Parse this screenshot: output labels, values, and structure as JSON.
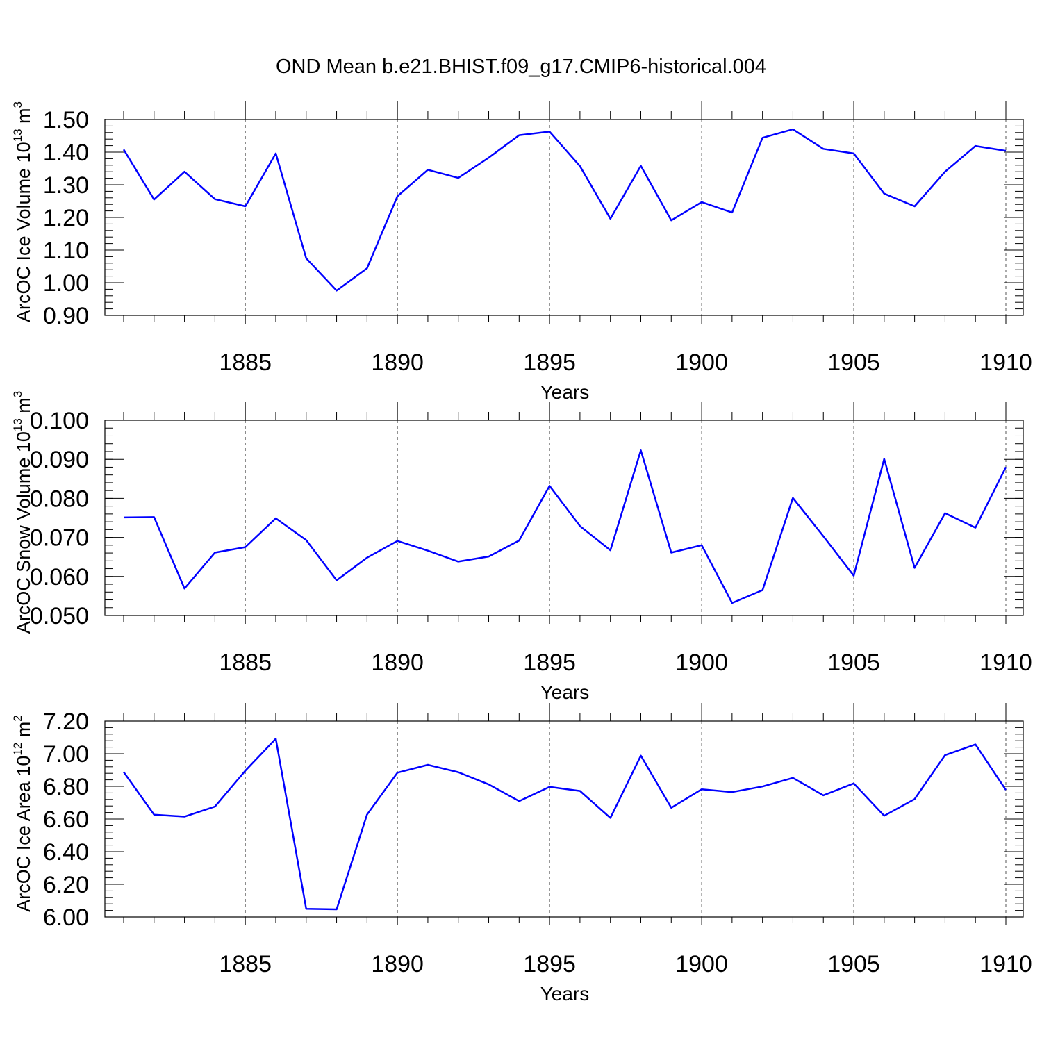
{
  "title": "OND Mean b.e21.BHIST.f09_g17.CMIP6-historical.004",
  "chart_data": [
    {
      "type": "line",
      "xlabel": "Years",
      "ylabel": "ArcOC Ice Volume 10",
      "ylabel_exp": "13",
      "ylabel_unit": " m",
      "ylabel_unit_exp": "3",
      "xlim": [
        1881,
        1910
      ],
      "ylim": [
        0.9,
        1.5
      ],
      "xticks": [
        1885,
        1890,
        1895,
        1900,
        1905,
        1910
      ],
      "xtick_labels": [
        "1885",
        "1890",
        "1895",
        "1900",
        "1905",
        "1910"
      ],
      "yticks": [
        0.9,
        1.0,
        1.1,
        1.2,
        1.3,
        1.4,
        1.5
      ],
      "ytick_labels": [
        "0.90",
        "1.00",
        "1.10",
        "1.20",
        "1.30",
        "1.40",
        "1.50"
      ],
      "y_minor_step": 0.02,
      "grid": "vertical dashed at major x ticks",
      "color": "#0000ff",
      "x": [
        1881,
        1882,
        1883,
        1884,
        1885,
        1886,
        1887,
        1888,
        1889,
        1890,
        1891,
        1892,
        1893,
        1894,
        1895,
        1896,
        1897,
        1898,
        1899,
        1900,
        1901,
        1902,
        1903,
        1904,
        1905,
        1906,
        1907,
        1908,
        1909,
        1910
      ],
      "values": [
        1.408,
        1.255,
        1.34,
        1.256,
        1.234,
        1.396,
        1.075,
        0.976,
        1.044,
        1.265,
        1.346,
        1.321,
        1.383,
        1.452,
        1.463,
        1.357,
        1.196,
        1.358,
        1.191,
        1.247,
        1.215,
        1.444,
        1.47,
        1.41,
        1.396,
        1.273,
        1.234,
        1.34,
        1.419,
        1.404
      ]
    },
    {
      "type": "line",
      "xlabel": "Years",
      "ylabel": "ArcOC Snow Volume 10",
      "ylabel_exp": "13",
      "ylabel_unit": " m",
      "ylabel_unit_exp": "3",
      "xlim": [
        1881,
        1910
      ],
      "ylim": [
        0.05,
        0.1
      ],
      "xticks": [
        1885,
        1890,
        1895,
        1900,
        1905,
        1910
      ],
      "xtick_labels": [
        "1885",
        "1890",
        "1895",
        "1900",
        "1905",
        "1910"
      ],
      "yticks": [
        0.05,
        0.06,
        0.07,
        0.08,
        0.09,
        0.1
      ],
      "ytick_labels": [
        "0.050",
        "0.060",
        "0.070",
        "0.080",
        "0.090",
        "0.100"
      ],
      "y_minor_step": 0.002,
      "grid": "vertical dashed at major x ticks",
      "color": "#0000ff",
      "x": [
        1881,
        1882,
        1883,
        1884,
        1885,
        1886,
        1887,
        1888,
        1889,
        1890,
        1891,
        1892,
        1893,
        1894,
        1895,
        1896,
        1897,
        1898,
        1899,
        1900,
        1901,
        1902,
        1903,
        1904,
        1905,
        1906,
        1907,
        1908,
        1909,
        1910
      ],
      "values": [
        0.0751,
        0.0752,
        0.0569,
        0.0661,
        0.0675,
        0.0749,
        0.0693,
        0.059,
        0.0648,
        0.0691,
        0.0666,
        0.0638,
        0.0651,
        0.0692,
        0.0832,
        0.0729,
        0.0667,
        0.0923,
        0.0661,
        0.068,
        0.0532,
        0.0565,
        0.0801,
        0.0703,
        0.0602,
        0.0901,
        0.0622,
        0.0762,
        0.0725,
        0.088
      ]
    },
    {
      "type": "line",
      "xlabel": "Years",
      "ylabel": "ArcOC Ice Area 10",
      "ylabel_exp": "12",
      "ylabel_unit": " m",
      "ylabel_unit_exp": "2",
      "xlim": [
        1881,
        1910
      ],
      "ylim": [
        6.0,
        7.2
      ],
      "xticks": [
        1885,
        1890,
        1895,
        1900,
        1905,
        1910
      ],
      "xtick_labels": [
        "1885",
        "1890",
        "1895",
        "1900",
        "1905",
        "1910"
      ],
      "yticks": [
        6.0,
        6.2,
        6.4,
        6.6,
        6.8,
        7.0,
        7.2
      ],
      "ytick_labels": [
        "6.00",
        "6.20",
        "6.40",
        "6.60",
        "6.80",
        "7.00",
        "7.20"
      ],
      "y_minor_step": 0.04,
      "grid": "vertical dashed at major x ticks",
      "color": "#0000ff",
      "x": [
        1881,
        1882,
        1883,
        1884,
        1885,
        1886,
        1887,
        1888,
        1889,
        1890,
        1891,
        1892,
        1893,
        1894,
        1895,
        1896,
        1897,
        1898,
        1899,
        1900,
        1901,
        1902,
        1903,
        1904,
        1905,
        1906,
        1907,
        1908,
        1909,
        1910
      ],
      "values": [
        6.888,
        6.627,
        6.615,
        6.676,
        6.896,
        7.092,
        6.05,
        6.047,
        6.627,
        6.884,
        6.932,
        6.887,
        6.812,
        6.71,
        6.797,
        6.772,
        6.607,
        6.988,
        6.669,
        6.782,
        6.765,
        6.799,
        6.852,
        6.745,
        6.818,
        6.62,
        6.722,
        6.991,
        7.057,
        6.778
      ]
    }
  ]
}
